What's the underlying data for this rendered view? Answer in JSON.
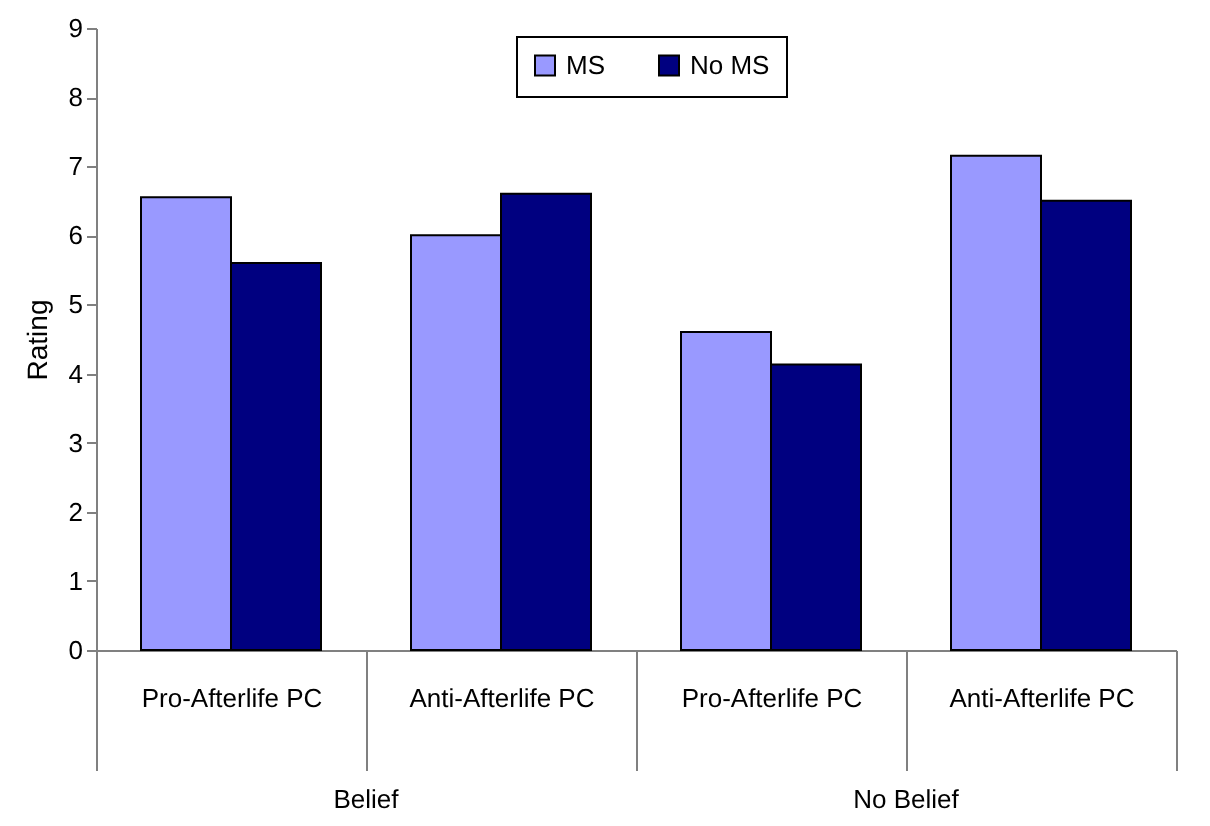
{
  "chart_data": {
    "type": "bar",
    "ylabel": "Rating",
    "categories": [
      "Pro-Afterlife PC",
      "Anti-Afterlife PC",
      "Pro-Afterlife PC",
      "Anti-Afterlife PC"
    ],
    "annotations": [
      "Belief",
      "No Belief"
    ],
    "series": [
      {
        "name": "MS",
        "color": "#9999ff",
        "values": [
          6.55,
          6.0,
          4.6,
          7.15
        ]
      },
      {
        "name": "No MS",
        "color": "#000080",
        "values": [
          5.6,
          6.6,
          4.13,
          6.5
        ]
      }
    ],
    "ylim": [
      0,
      9
    ],
    "yticks": [
      0,
      1,
      2,
      3,
      4,
      5,
      6,
      7,
      8,
      9
    ],
    "grid": false,
    "legend": "top"
  }
}
